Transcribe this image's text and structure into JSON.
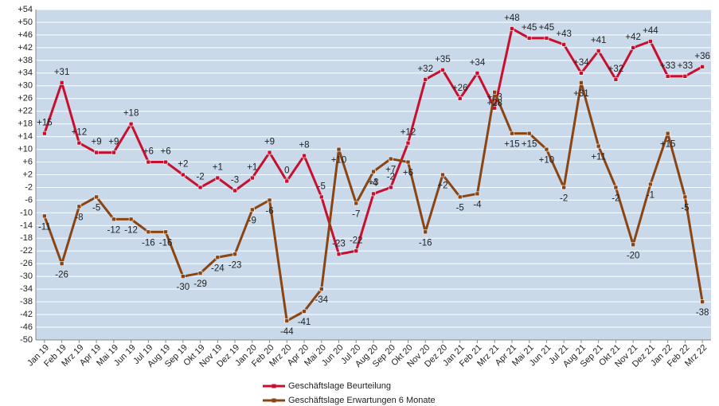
{
  "chart_data": {
    "type": "line",
    "categories": [
      "Jan 19",
      "Feb 19",
      "Mrz 19",
      "Apr 19",
      "Mai 19",
      "Jun 19",
      "Jul 19",
      "Aug 19",
      "Sep 19",
      "Okt 19",
      "Nov 19",
      "Dez 19",
      "Jan 20",
      "Feb 20",
      "Mrz 20",
      "Apr 20",
      "Mai 20",
      "Jun 20",
      "Jul 20",
      "Aug 20",
      "Sep 20",
      "Okt 20",
      "Nov 20",
      "Dez 20",
      "Jan 21",
      "Feb 21",
      "Mrz 21",
      "Apr 21",
      "Mai 21",
      "Jun 21",
      "Jul 21",
      "Aug 21",
      "Sep 21",
      "Okt 21",
      "Nov 21",
      "Dez 21",
      "Jan 22",
      "Feb 22",
      "Mrz 22"
    ],
    "series": [
      {
        "name": "Geschäftslage Beurteilung",
        "color": "#c8102e",
        "values": [
          15,
          31,
          12,
          9,
          9,
          18,
          6,
          6,
          2,
          -2,
          1,
          -3,
          1,
          9,
          0,
          8,
          -5,
          -23,
          -22,
          -4,
          -2,
          12,
          32,
          35,
          26,
          34,
          23,
          48,
          45,
          45,
          43,
          34,
          41,
          32,
          42,
          44,
          33,
          33,
          36
        ],
        "value_labels": [
          "+15",
          "+31",
          "+12",
          "+9",
          "+9",
          "+18",
          "+6",
          "+6",
          "+2",
          "-2",
          "+1",
          "-3",
          "+1",
          "+9",
          "0",
          "+8",
          "-5",
          "-23",
          "-22",
          "-4",
          "-2",
          "+12",
          "+32",
          "+35",
          "+26",
          "+34",
          "+23",
          "+48",
          "+45",
          "+45",
          "+43",
          "+34",
          "+41",
          "+32",
          "+42",
          "+44",
          "+33",
          "+33",
          "+36"
        ]
      },
      {
        "name": "Geschäftslage Erwartungen 6 Monate",
        "color": "#8b4513",
        "values": [
          -11,
          -26,
          -8,
          -5,
          -12,
          -12,
          -16,
          -16,
          -30,
          -29,
          -24,
          -23,
          -9,
          -6,
          -44,
          -41,
          -34,
          10,
          -7,
          3,
          7,
          6,
          -16,
          2,
          -5,
          -4,
          28,
          15,
          15,
          10,
          -2,
          31,
          11,
          -2,
          -20,
          -1,
          15,
          -5,
          -38
        ],
        "value_labels": [
          "-11",
          "-26",
          "-8",
          "-5",
          "-12",
          "-12",
          "-16",
          "-16",
          "-30",
          "-29",
          "-24",
          "-23",
          "-9",
          "-6",
          "-44",
          "-41",
          "-34",
          "+10",
          "-7",
          "+3",
          "+7",
          "+6",
          "-16",
          "+2",
          "-5",
          "-4",
          "+28",
          "+15",
          "+15",
          "+10",
          "-2",
          "+31",
          "+11",
          "-2",
          "-20",
          "-1",
          "+15",
          "-5",
          "-38"
        ]
      }
    ],
    "ylim": [
      -50,
      54
    ],
    "yticks": [
      {
        "value": 54,
        "label": "+54"
      },
      {
        "value": 50,
        "label": "+50"
      },
      {
        "value": 46,
        "label": "+46"
      },
      {
        "value": 42,
        "label": "+42"
      },
      {
        "value": 38,
        "label": "+38"
      },
      {
        "value": 34,
        "label": "+34"
      },
      {
        "value": 30,
        "label": "+30"
      },
      {
        "value": 26,
        "label": "+26"
      },
      {
        "value": 22,
        "label": "+22"
      },
      {
        "value": 18,
        "label": "+18"
      },
      {
        "value": 14,
        "label": "+14"
      },
      {
        "value": 10,
        "label": "+10"
      },
      {
        "value": 6,
        "label": "+6"
      },
      {
        "value": 2,
        "label": "+2"
      },
      -2,
      -6,
      -10,
      -14,
      -18,
      -22,
      -26,
      -30,
      -34,
      -38,
      -42,
      -46,
      -50
    ],
    "grid": true
  }
}
